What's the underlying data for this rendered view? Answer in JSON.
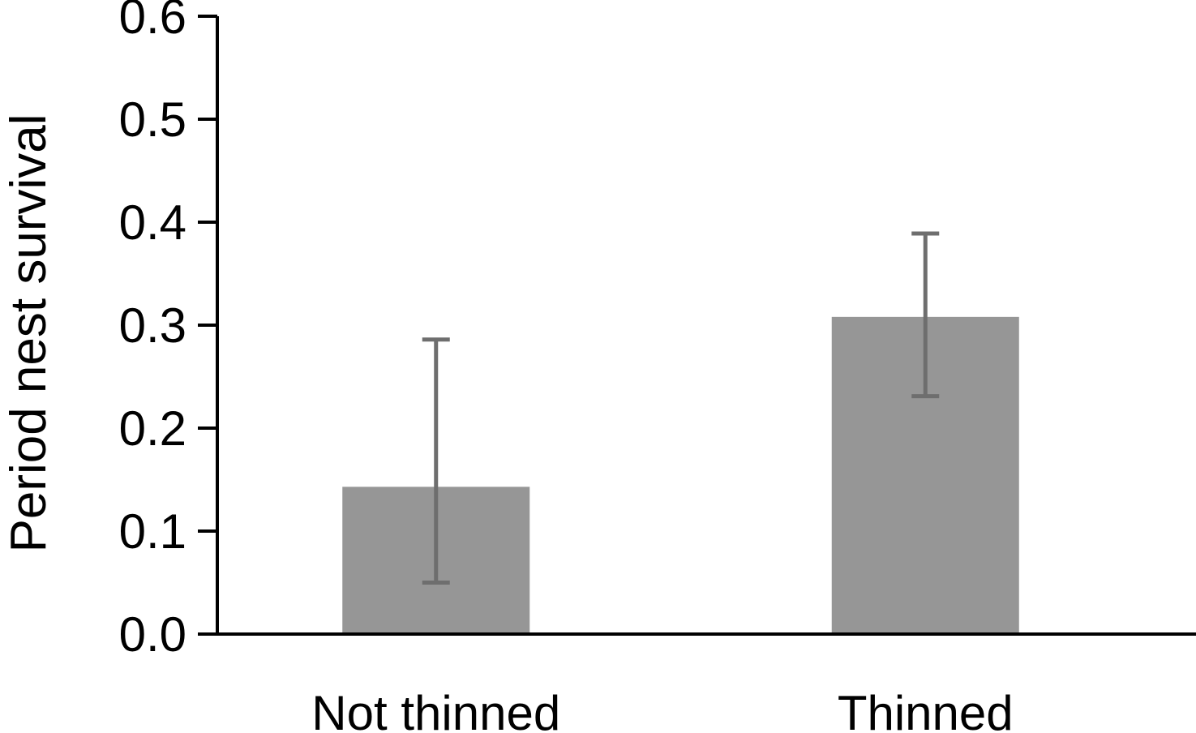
{
  "chart_data": {
    "type": "bar",
    "title": "",
    "xlabel": "",
    "ylabel": "Period nest survival",
    "categories": [
      "Not thinned",
      "Thinned"
    ],
    "values": [
      0.143,
      0.308
    ],
    "error_low": [
      0.05,
      0.231
    ],
    "error_high": [
      0.286,
      0.389
    ],
    "ylim": [
      0,
      0.6
    ],
    "yticks": [
      0.0,
      0.1,
      0.2,
      0.3,
      0.4,
      0.5,
      0.6
    ],
    "ytick_labels": [
      "0.0",
      "0.1",
      "0.2",
      "0.3",
      "0.4",
      "0.5",
      "0.6"
    ],
    "grid": false,
    "legend": "none",
    "bar_color": "#969696",
    "error_bar_color": "#6e6e6e",
    "axis_color": "#000000"
  }
}
